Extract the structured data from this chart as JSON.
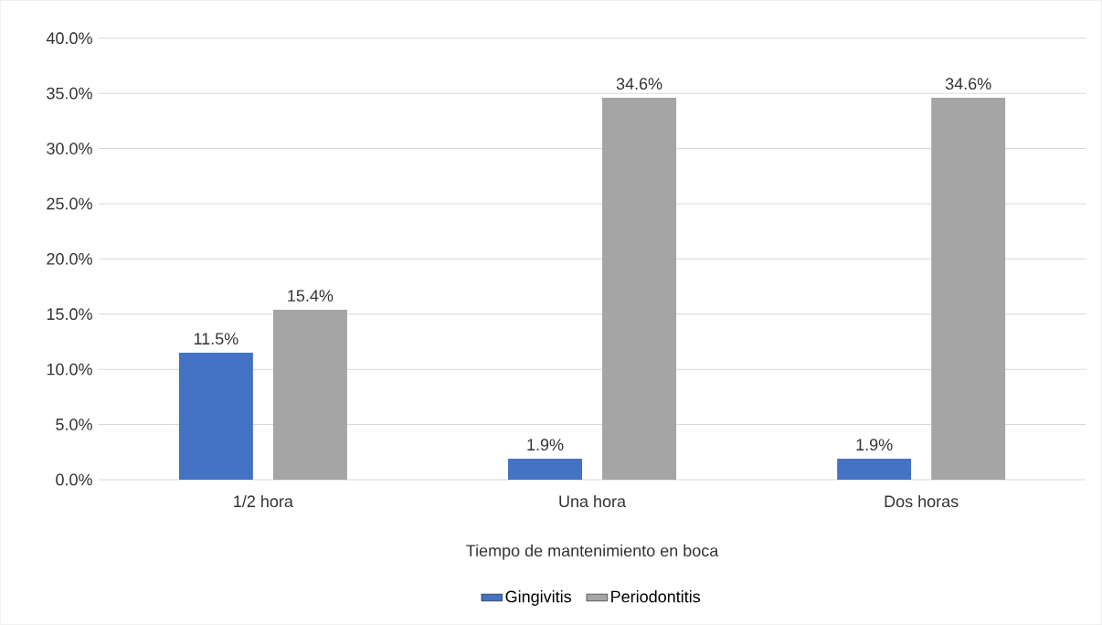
{
  "chart_data": {
    "type": "bar",
    "xlabel": "Tiempo de mantenimiento en boca",
    "categories": [
      "1/2 hora",
      "Una hora",
      "Dos horas"
    ],
    "series": [
      {
        "name": "Gingivitis",
        "color": "#4472c4",
        "values": [
          11.5,
          1.9,
          1.9
        ],
        "value_labels": [
          "11.5%",
          "1.9%",
          "1.9%"
        ]
      },
      {
        "name": "Periodontitis",
        "color": "#a5a5a5",
        "values": [
          15.4,
          34.6,
          34.6
        ],
        "value_labels": [
          "15.4%",
          "34.6%",
          "34.6%"
        ]
      }
    ],
    "ylim": [
      0,
      40
    ],
    "yticks": [
      {
        "value": 0,
        "label": "0.0%"
      },
      {
        "value": 5,
        "label": "5.0%"
      },
      {
        "value": 10,
        "label": "10.0%"
      },
      {
        "value": 15,
        "label": "15.0%"
      },
      {
        "value": 20,
        "label": "20.0%"
      },
      {
        "value": 25,
        "label": "25.0%"
      },
      {
        "value": 30,
        "label": "30.0%"
      },
      {
        "value": 35,
        "label": "35.0%"
      },
      {
        "value": 40,
        "label": "40.0%"
      }
    ],
    "grid": "y",
    "legend": "bottom"
  }
}
